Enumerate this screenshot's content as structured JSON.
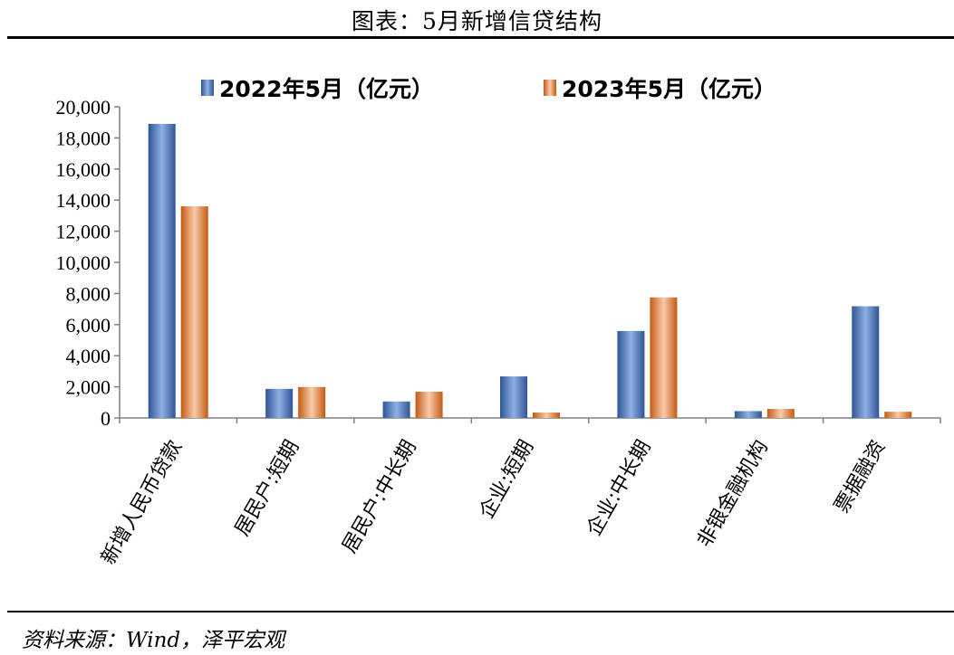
{
  "page": {
    "title": "图表：5月新增信贷结构",
    "source": "资料来源：Wind，泽平宏观"
  },
  "chart_data": {
    "type": "bar",
    "title": "图表：5月新增信贷结构",
    "xlabel": "",
    "ylabel": "",
    "categories": [
      "新增人民币贷款",
      "居民户:短期",
      "居民户:中长期",
      "企业:短期",
      "企业:中长期",
      "非银金融机构",
      "票据融资"
    ],
    "series": [
      {
        "name": "2022年5月（亿元）",
        "color": "#4472c4",
        "values": [
          18900,
          1870,
          1060,
          2670,
          5590,
          440,
          7180
        ]
      },
      {
        "name": "2023年5月（亿元）",
        "color": "#ed7d31",
        "values": [
          13600,
          1990,
          1690,
          350,
          7750,
          580,
          400
        ]
      }
    ],
    "ylim": [
      0,
      20000
    ],
    "yticks": [
      0,
      2000,
      4000,
      6000,
      8000,
      10000,
      12000,
      14000,
      16000,
      18000,
      20000
    ],
    "ytick_labels": [
      "0",
      "2,000",
      "4,000",
      "6,000",
      "8,000",
      "10,000",
      "12,000",
      "14,000",
      "16,000",
      "18,000",
      "20,000"
    ],
    "grid": false,
    "legend_position": "top"
  }
}
